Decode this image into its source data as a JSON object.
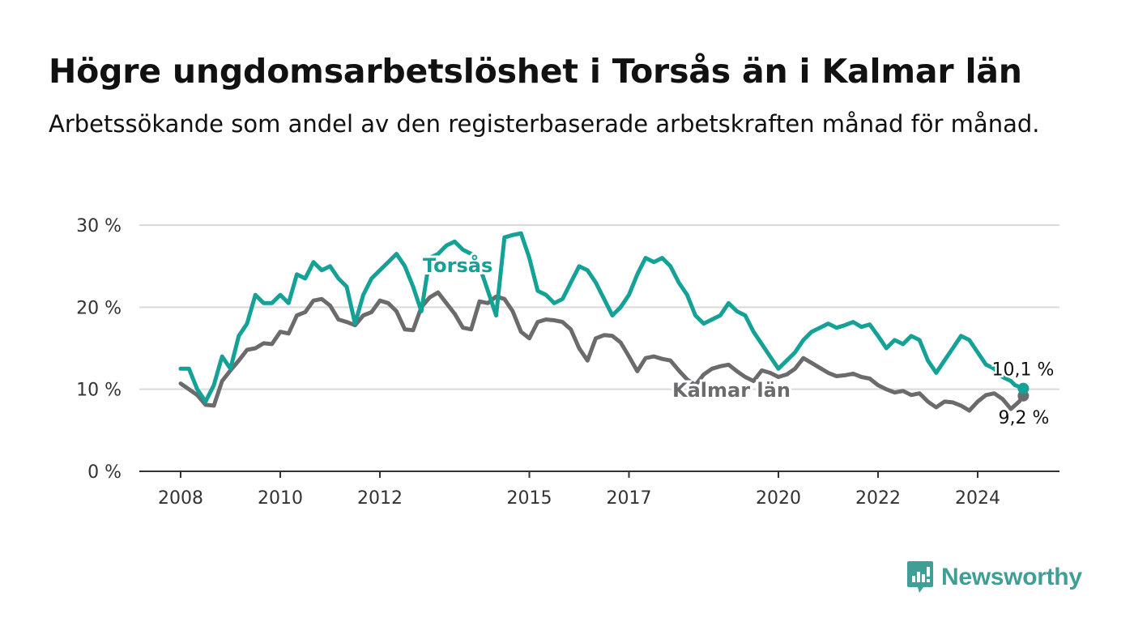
{
  "header": {
    "title": "Högre ungdomsarbetslöshet i Torsås än i Kalmar län",
    "subtitle": "Arbetssökande som andel av den registerbaserade arbetskraften månad för månad."
  },
  "brand": {
    "name": "Newsworthy",
    "color": "#3f9e96"
  },
  "chart_data": {
    "type": "line",
    "title": "Högre ungdomsarbetslöshet i Torsås än i Kalmar län",
    "subtitle": "Arbetssökande som andel av den registerbaserade arbetskraften månad för månad.",
    "x_range": [
      "2008-01",
      "2024-12"
    ],
    "x_ticks": [
      {
        "year": 2008,
        "label": "2008"
      },
      {
        "year": 2010,
        "label": "2010"
      },
      {
        "year": 2012,
        "label": "2012"
      },
      {
        "year": 2015,
        "label": "2015"
      },
      {
        "year": 2017,
        "label": "2017"
      },
      {
        "year": 2020,
        "label": "2020"
      },
      {
        "year": 2022,
        "label": "2022"
      },
      {
        "year": 2024,
        "label": "2024"
      }
    ],
    "ylim": [
      0,
      30
    ],
    "y_ticks": [
      {
        "value": 0,
        "label": "0 %"
      },
      {
        "value": 10,
        "label": "10 %"
      },
      {
        "value": 20,
        "label": "20 %"
      },
      {
        "value": 30,
        "label": "30 %"
      }
    ],
    "grid": true,
    "series": [
      {
        "name": "Torsås",
        "color": "#14a196",
        "end_label": "10,1 %",
        "points": [
          [
            "2008-01",
            12.5
          ],
          [
            "2008-03",
            12.5
          ],
          [
            "2008-05",
            10
          ],
          [
            "2008-07",
            8.5
          ],
          [
            "2008-09",
            10.5
          ],
          [
            "2008-11",
            14
          ],
          [
            "2009-01",
            12.5
          ],
          [
            "2009-03",
            16.5
          ],
          [
            "2009-05",
            18
          ],
          [
            "2009-07",
            21.5
          ],
          [
            "2009-09",
            20.5
          ],
          [
            "2009-11",
            20.5
          ],
          [
            "2010-01",
            21.5
          ],
          [
            "2010-03",
            20.5
          ],
          [
            "2010-05",
            24
          ],
          [
            "2010-07",
            23.5
          ],
          [
            "2010-09",
            25.5
          ],
          [
            "2010-11",
            24.5
          ],
          [
            "2011-01",
            25
          ],
          [
            "2011-03",
            23.5
          ],
          [
            "2011-05",
            22.5
          ],
          [
            "2011-07",
            18
          ],
          [
            "2011-09",
            21.5
          ],
          [
            "2011-11",
            23.5
          ],
          [
            "2012-01",
            24.5
          ],
          [
            "2012-03",
            25.5
          ],
          [
            "2012-05",
            26.5
          ],
          [
            "2012-07",
            25
          ],
          [
            "2012-09",
            22.5
          ],
          [
            "2012-11",
            19.5
          ],
          [
            "2013-01",
            26
          ],
          [
            "2013-03",
            26.5
          ],
          [
            "2013-05",
            27.5
          ],
          [
            "2013-07",
            28
          ],
          [
            "2013-09",
            27
          ],
          [
            "2013-11",
            26.5
          ],
          [
            "2014-01",
            25
          ],
          [
            "2014-03",
            22
          ],
          [
            "2014-05",
            19
          ],
          [
            "2014-07",
            28.5
          ],
          [
            "2014-09",
            28.8
          ],
          [
            "2014-11",
            29
          ],
          [
            "2015-01",
            26
          ],
          [
            "2015-03",
            22
          ],
          [
            "2015-05",
            21.5
          ],
          [
            "2015-07",
            20.5
          ],
          [
            "2015-09",
            21
          ],
          [
            "2015-11",
            23
          ],
          [
            "2016-01",
            25
          ],
          [
            "2016-03",
            24.5
          ],
          [
            "2016-05",
            23
          ],
          [
            "2016-07",
            21
          ],
          [
            "2016-09",
            19
          ],
          [
            "2016-11",
            20
          ],
          [
            "2017-01",
            21.5
          ],
          [
            "2017-03",
            24
          ],
          [
            "2017-05",
            26
          ],
          [
            "2017-07",
            25.5
          ],
          [
            "2017-09",
            26
          ],
          [
            "2017-11",
            25
          ],
          [
            "2018-01",
            23
          ],
          [
            "2018-03",
            21.5
          ],
          [
            "2018-05",
            19
          ],
          [
            "2018-07",
            18
          ],
          [
            "2018-09",
            18.5
          ],
          [
            "2018-11",
            19
          ],
          [
            "2019-01",
            20.5
          ],
          [
            "2019-03",
            19.5
          ],
          [
            "2019-05",
            19
          ],
          [
            "2019-07",
            17
          ],
          [
            "2019-09",
            15.5
          ],
          [
            "2019-11",
            14
          ],
          [
            "2020-01",
            12.5
          ],
          [
            "2020-03",
            13.5
          ],
          [
            "2020-05",
            14.5
          ],
          [
            "2020-07",
            16
          ],
          [
            "2020-09",
            17
          ],
          [
            "2020-11",
            17.5
          ],
          [
            "2021-01",
            18
          ],
          [
            "2021-03",
            17.5
          ],
          [
            "2021-05",
            17.8
          ],
          [
            "2021-07",
            18.2
          ],
          [
            "2021-09",
            17.6
          ],
          [
            "2021-11",
            17.9
          ],
          [
            "2022-01",
            16.5
          ],
          [
            "2022-03",
            15
          ],
          [
            "2022-05",
            16
          ],
          [
            "2022-07",
            15.5
          ],
          [
            "2022-09",
            16.5
          ],
          [
            "2022-11",
            16
          ],
          [
            "2023-01",
            13.5
          ],
          [
            "2023-03",
            12
          ],
          [
            "2023-05",
            13.5
          ],
          [
            "2023-07",
            15
          ],
          [
            "2023-09",
            16.5
          ],
          [
            "2023-11",
            16
          ],
          [
            "2024-01",
            14.5
          ],
          [
            "2024-03",
            13
          ],
          [
            "2024-05",
            12.5
          ],
          [
            "2024-07",
            11.5
          ],
          [
            "2024-09",
            11
          ],
          [
            "2024-10",
            10.5
          ],
          [
            "2024-12",
            10.1
          ]
        ]
      },
      {
        "name": "Kalmar län",
        "color": "#6b6b6e",
        "end_label": "9,2 %",
        "points": [
          [
            "2008-01",
            10.7
          ],
          [
            "2008-03",
            10
          ],
          [
            "2008-05",
            9.3
          ],
          [
            "2008-07",
            8.1
          ],
          [
            "2008-09",
            8
          ],
          [
            "2008-11",
            11
          ],
          [
            "2009-01",
            12.3
          ],
          [
            "2009-03",
            13.5
          ],
          [
            "2009-05",
            14.8
          ],
          [
            "2009-07",
            15
          ],
          [
            "2009-09",
            15.6
          ],
          [
            "2009-11",
            15.5
          ],
          [
            "2010-01",
            17
          ],
          [
            "2010-03",
            16.8
          ],
          [
            "2010-05",
            19
          ],
          [
            "2010-07",
            19.4
          ],
          [
            "2010-09",
            20.8
          ],
          [
            "2010-11",
            21
          ],
          [
            "2011-01",
            20.2
          ],
          [
            "2011-03",
            18.5
          ],
          [
            "2011-05",
            18.2
          ],
          [
            "2011-07",
            17.8
          ],
          [
            "2011-09",
            19
          ],
          [
            "2011-11",
            19.4
          ],
          [
            "2012-01",
            20.8
          ],
          [
            "2012-03",
            20.5
          ],
          [
            "2012-05",
            19.5
          ],
          [
            "2012-07",
            17.3
          ],
          [
            "2012-09",
            17.2
          ],
          [
            "2012-11",
            20
          ],
          [
            "2013-01",
            21.2
          ],
          [
            "2013-03",
            21.8
          ],
          [
            "2013-05",
            20.5
          ],
          [
            "2013-07",
            19.2
          ],
          [
            "2013-09",
            17.5
          ],
          [
            "2013-11",
            17.3
          ],
          [
            "2014-01",
            20.7
          ],
          [
            "2014-03",
            20.5
          ],
          [
            "2014-05",
            21.3
          ],
          [
            "2014-07",
            21
          ],
          [
            "2014-09",
            19.5
          ],
          [
            "2014-11",
            17
          ],
          [
            "2015-01",
            16.2
          ],
          [
            "2015-03",
            18.2
          ],
          [
            "2015-05",
            18.5
          ],
          [
            "2015-07",
            18.4
          ],
          [
            "2015-09",
            18.2
          ],
          [
            "2015-11",
            17.3
          ],
          [
            "2016-01",
            15
          ],
          [
            "2016-03",
            13.5
          ],
          [
            "2016-05",
            16.2
          ],
          [
            "2016-07",
            16.6
          ],
          [
            "2016-09",
            16.5
          ],
          [
            "2016-11",
            15.7
          ],
          [
            "2017-01",
            14
          ],
          [
            "2017-03",
            12.2
          ],
          [
            "2017-05",
            13.8
          ],
          [
            "2017-07",
            14
          ],
          [
            "2017-09",
            13.7
          ],
          [
            "2017-11",
            13.5
          ],
          [
            "2018-01",
            12.3
          ],
          [
            "2018-03",
            11.2
          ],
          [
            "2018-05",
            10.5
          ],
          [
            "2018-07",
            11.8
          ],
          [
            "2018-09",
            12.5
          ],
          [
            "2018-11",
            12.8
          ],
          [
            "2019-01",
            13
          ],
          [
            "2019-03",
            12.2
          ],
          [
            "2019-05",
            11.5
          ],
          [
            "2019-07",
            11
          ],
          [
            "2019-09",
            12.3
          ],
          [
            "2019-11",
            12
          ],
          [
            "2020-01",
            11.5
          ],
          [
            "2020-03",
            11.8
          ],
          [
            "2020-05",
            12.5
          ],
          [
            "2020-07",
            13.8
          ],
          [
            "2020-09",
            13.2
          ],
          [
            "2020-11",
            12.6
          ],
          [
            "2021-01",
            12
          ],
          [
            "2021-03",
            11.6
          ],
          [
            "2021-05",
            11.7
          ],
          [
            "2021-07",
            11.9
          ],
          [
            "2021-09",
            11.5
          ],
          [
            "2021-11",
            11.3
          ],
          [
            "2022-01",
            10.5
          ],
          [
            "2022-03",
            10
          ],
          [
            "2022-05",
            9.6
          ],
          [
            "2022-07",
            9.8
          ],
          [
            "2022-09",
            9.3
          ],
          [
            "2022-11",
            9.5
          ],
          [
            "2023-01",
            8.5
          ],
          [
            "2023-03",
            7.8
          ],
          [
            "2023-05",
            8.5
          ],
          [
            "2023-07",
            8.4
          ],
          [
            "2023-09",
            8
          ],
          [
            "2023-11",
            7.4
          ],
          [
            "2024-01",
            8.5
          ],
          [
            "2024-03",
            9.3
          ],
          [
            "2024-05",
            9.5
          ],
          [
            "2024-07",
            8.8
          ],
          [
            "2024-09",
            7.6
          ],
          [
            "2024-11",
            8.5
          ],
          [
            "2024-12",
            9.2
          ]
        ]
      }
    ],
    "annotations": [
      {
        "text": "Torsås",
        "series": "Torsås"
      },
      {
        "text": "Kalmar län",
        "series": "Kalmar län"
      }
    ]
  }
}
